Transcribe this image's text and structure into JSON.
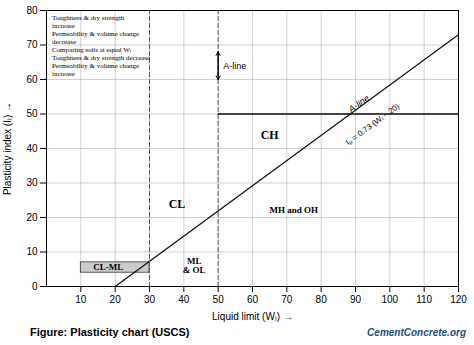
{
  "chart_data": {
    "type": "line",
    "title": "Figure: Plasticity chart (USCS)",
    "xlabel": "Liquid limit (Wₗ) →",
    "ylabel": "Plasticity index (Iₗ) →",
    "xlim": [
      0,
      120
    ],
    "ylim": [
      0,
      80
    ],
    "xticks": [
      10,
      20,
      30,
      40,
      50,
      60,
      70,
      80,
      90,
      100,
      110,
      120
    ],
    "yticks": [
      0,
      10,
      20,
      30,
      40,
      50,
      60,
      70,
      80
    ],
    "grid": true,
    "series": [
      {
        "x": [
          20,
          120
        ],
        "values": [
          0,
          73
        ],
        "color": "#111111",
        "line_style": "solid"
      },
      {
        "x": [
          30,
          30
        ],
        "values": [
          0,
          80
        ],
        "color": "#555555",
        "line_style": "dashed"
      },
      {
        "x": [
          50,
          50
        ],
        "values": [
          0,
          80
        ],
        "color": "#555555",
        "line_style": "dashed"
      },
      {
        "x": [
          50,
          120
        ],
        "values": [
          50,
          50
        ],
        "color": "#111111",
        "line_style": "solid"
      }
    ],
    "regions": [
      {
        "points": [
          [
            10,
            4
          ],
          [
            30,
            4
          ],
          [
            30,
            7
          ],
          [
            10,
            7
          ]
        ],
        "color": "#cccccc",
        "edge_color": "#333333"
      }
    ],
    "zone_labels": [
      {
        "text": "CH",
        "x": 65,
        "y": 44
      },
      {
        "text": "CL",
        "x": 38,
        "y": 24
      },
      {
        "text": "MH and OH",
        "x": 72,
        "y": 22
      },
      {
        "text": "ML\n& OL",
        "x": 43,
        "y": 6
      },
      {
        "text": "CL-ML",
        "x": 18,
        "y": 5.5
      }
    ],
    "line_labels": [
      {
        "text": "A-line",
        "x": 91,
        "y": 53
      },
      {
        "text": "Iₚ = 0.73 (Wₗ − 20)",
        "x": 95,
        "y": 47
      }
    ],
    "arrow": {
      "x": 50,
      "y1": 60,
      "y2": 68,
      "text": "A-line"
    },
    "notes": {
      "x": 1,
      "y": 79,
      "lines": [
        "Toughness & dry strength",
        "increase",
        "Permeability & volume change",
        "decrease",
        "Comparing soils at equal Wₗ",
        "Toughness & dry strength decrease",
        "Permeability & volume change",
        "increase"
      ]
    },
    "watermark": "CementConcrete.org",
    "watermark_color": "#1a4f8a"
  }
}
